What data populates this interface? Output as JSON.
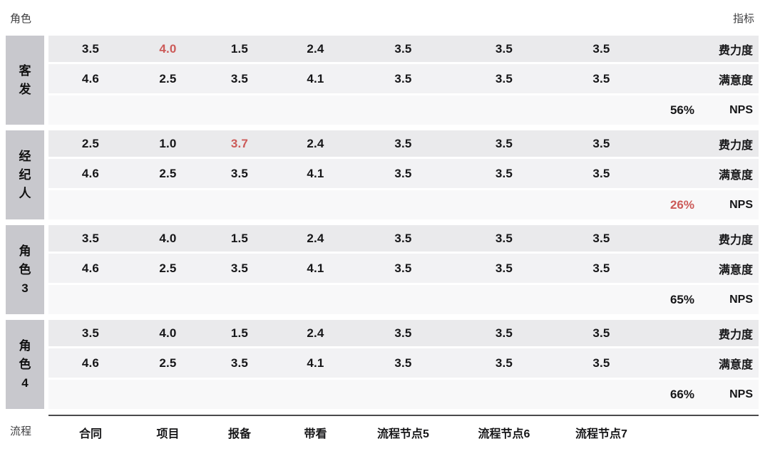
{
  "page": {
    "role_axis_label": "角色",
    "metric_axis_label": "指标",
    "process_axis_label": "流程"
  },
  "colors": {
    "highlight_red": "#cc5a58",
    "row_effort_bg": "#eaeaec",
    "row_satisfaction_bg": "#f2f2f4",
    "row_nps_bg": "#f8f8f9",
    "role_block_bg": "#c8c8cd",
    "text_dark": "#161618",
    "divider": "#4a4a4c"
  },
  "chart_data": {
    "type": "table",
    "row_axis": "角色",
    "column_axis": "流程",
    "metric_axis": "指标",
    "columns": [
      "合同",
      "项目",
      "报备",
      "带看",
      "流程节点5",
      "流程节点6",
      "流程节点7"
    ],
    "metric_labels": [
      "费力度",
      "满意度",
      "NPS"
    ],
    "groups": [
      {
        "role": "客发",
        "effort": {
          "values": [
            "3.5",
            "4.0",
            "1.5",
            "2.4",
            "3.5",
            "3.5",
            "3.5"
          ],
          "highlight_index": 1
        },
        "satisfaction": {
          "values": [
            "4.6",
            "2.5",
            "3.5",
            "4.1",
            "3.5",
            "3.5",
            "3.5"
          ],
          "highlight_index": -1
        },
        "nps": {
          "value": "56%",
          "highlighted": false
        }
      },
      {
        "role": "经纪人",
        "effort": {
          "values": [
            "2.5",
            "1.0",
            "3.7",
            "2.4",
            "3.5",
            "3.5",
            "3.5"
          ],
          "highlight_index": 2
        },
        "satisfaction": {
          "values": [
            "4.6",
            "2.5",
            "3.5",
            "4.1",
            "3.5",
            "3.5",
            "3.5"
          ],
          "highlight_index": -1
        },
        "nps": {
          "value": "26%",
          "highlighted": true
        }
      },
      {
        "role": "角色3",
        "effort": {
          "values": [
            "3.5",
            "4.0",
            "1.5",
            "2.4",
            "3.5",
            "3.5",
            "3.5"
          ],
          "highlight_index": -1
        },
        "satisfaction": {
          "values": [
            "4.6",
            "2.5",
            "3.5",
            "4.1",
            "3.5",
            "3.5",
            "3.5"
          ],
          "highlight_index": -1
        },
        "nps": {
          "value": "65%",
          "highlighted": false
        }
      },
      {
        "role": "角色4",
        "effort": {
          "values": [
            "3.5",
            "4.0",
            "1.5",
            "2.4",
            "3.5",
            "3.5",
            "3.5"
          ],
          "highlight_index": -1
        },
        "satisfaction": {
          "values": [
            "4.6",
            "2.5",
            "3.5",
            "4.1",
            "3.5",
            "3.5",
            "3.5"
          ],
          "highlight_index": -1
        },
        "nps": {
          "value": "66%",
          "highlighted": false
        }
      }
    ]
  }
}
